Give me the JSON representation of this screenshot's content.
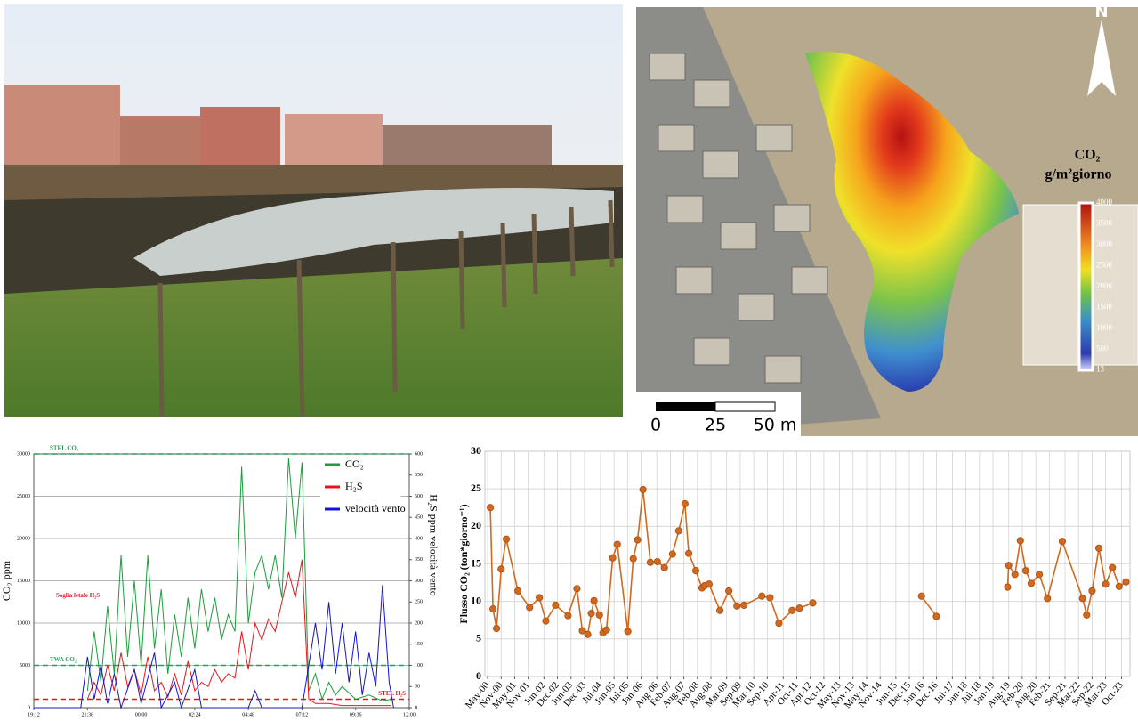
{
  "map": {
    "north": "N",
    "colorbar": {
      "title": "CO₂",
      "unit": "g/m²giorno",
      "lim": [
        0,
        4000
      ],
      "ticks": [
        13,
        500,
        1000,
        1500,
        2000,
        2500,
        3000,
        3500,
        4000
      ]
    },
    "scale_bar": {
      "lim": [
        0,
        50
      ],
      "ticks": [
        0,
        25,
        {
          "value": 50,
          "label": "50 m"
        }
      ]
    }
  },
  "chart_data": [
    {
      "type": "line",
      "ylabel": "CO₂ ppm",
      "y2label": "H₂S ppm  velocità vento",
      "xlim": [
        19.2,
        36
      ],
      "xticks": [
        {
          "value": 19.2,
          "label": "19:12"
        },
        {
          "value": 21.6,
          "label": "21:36"
        },
        {
          "value": 24,
          "label": "00:00"
        },
        {
          "value": 26.4,
          "label": "02:24"
        },
        {
          "value": 28.8,
          "label": "04:48"
        },
        {
          "value": 31.2,
          "label": "07:12"
        },
        {
          "value": 33.6,
          "label": "09:36"
        },
        {
          "value": 36,
          "label": "12:00"
        }
      ],
      "ylim": [
        0,
        30000
      ],
      "yticks": [
        0,
        5000,
        10000,
        15000,
        20000,
        25000,
        30000
      ],
      "y2lim": [
        0,
        600
      ],
      "y2ticks": [
        0,
        50,
        100,
        150,
        200,
        250,
        300,
        350,
        400,
        450,
        500,
        550,
        600
      ],
      "grid": true,
      "legend": "upper right",
      "series": [
        {
          "name": "CO₂",
          "color": "#1a9e3a",
          "x": [
            21.6,
            21.9,
            22.2,
            22.5,
            22.8,
            23.1,
            23.4,
            23.7,
            24.0,
            24.3,
            24.6,
            24.9,
            25.2,
            25.5,
            25.8,
            26.1,
            26.4,
            26.7,
            27.0,
            27.3,
            27.6,
            27.9,
            28.2,
            28.5,
            28.8,
            29.1,
            29.4,
            29.7,
            30.0,
            30.3,
            30.6,
            30.9,
            31.2,
            31.5,
            31.8,
            32.1,
            32.4,
            32.7,
            33.0,
            33.6,
            34.2,
            34.8,
            35.2
          ],
          "values": [
            2000,
            9000,
            3000,
            12000,
            4000,
            18000,
            6000,
            15000,
            5000,
            18000,
            7000,
            14000,
            4000,
            11000,
            6000,
            13000,
            7000,
            14000,
            9000,
            13000,
            8000,
            11000,
            9000,
            28500,
            10000,
            16000,
            18000,
            14000,
            18000,
            13000,
            29500,
            20000,
            29000,
            2000,
            4000,
            1000,
            3000,
            1500,
            2500,
            1000,
            1500,
            800,
            1000
          ]
        },
        {
          "name": "H₂S",
          "color": "#e8141b",
          "axis": "y2",
          "x": [
            21.6,
            21.9,
            22.2,
            22.5,
            22.8,
            23.1,
            23.4,
            23.7,
            24.0,
            24.3,
            24.6,
            24.9,
            25.2,
            25.5,
            25.8,
            26.1,
            26.4,
            26.7,
            27.0,
            27.3,
            27.6,
            27.9,
            28.2,
            28.5,
            28.8,
            29.1,
            29.4,
            29.7,
            30.0,
            30.3,
            30.6,
            30.9,
            31.2,
            31.5,
            31.8,
            32.4,
            33.0,
            34.2,
            35.2
          ],
          "values": [
            20,
            60,
            30,
            100,
            40,
            130,
            50,
            90,
            30,
            120,
            40,
            60,
            25,
            80,
            30,
            110,
            40,
            60,
            50,
            90,
            60,
            80,
            70,
            180,
            90,
            200,
            160,
            210,
            180,
            250,
            320,
            260,
            350,
            20,
            10,
            10,
            5,
            5,
            5
          ]
        },
        {
          "name": "velocità vento",
          "color": "#1414d0",
          "axis": "y2",
          "x": [
            19.2,
            21.3,
            21.6,
            21.9,
            22.2,
            22.5,
            22.8,
            23.1,
            23.7,
            24.0,
            24.6,
            24.9,
            25.5,
            25.8,
            26.4,
            26.7,
            28.8,
            29.1,
            29.4,
            31.2,
            31.5,
            31.8,
            32.1,
            32.4,
            32.7,
            33.0,
            33.3,
            33.6,
            33.9,
            34.2,
            34.5,
            34.8,
            35.1,
            35.3
          ],
          "values": [
            0,
            0,
            120,
            20,
            100,
            10,
            80,
            0,
            90,
            10,
            130,
            0,
            60,
            0,
            90,
            0,
            0,
            40,
            0,
            0,
            100,
            200,
            90,
            250,
            80,
            200,
            60,
            180,
            30,
            130,
            50,
            290,
            60,
            0
          ]
        }
      ],
      "reference_lines": [
        {
          "label": "STEL CO₂",
          "value": 30000,
          "color": "#2e9b57"
        },
        {
          "label": "TWA CO₂",
          "value": 5000,
          "color": "#2e9b57"
        },
        {
          "label": "STEL H₂S",
          "value": 20,
          "axis": "y2",
          "color": "#e8141b"
        }
      ],
      "annotations": [
        {
          "text": "Soglia letale H₂S",
          "color": "#e8141b"
        }
      ]
    },
    {
      "type": "line",
      "ylabel": "Flusso CO₂ (ton*giorno⁻¹)",
      "xlim": [
        2000.27,
        2024.1
      ],
      "xticks": [
        {
          "value": 2000.37,
          "label": "May-00"
        },
        {
          "value": 2000.87,
          "label": "Nov-00"
        },
        {
          "value": 2001.37,
          "label": "May-01"
        },
        {
          "value": 2001.87,
          "label": "Nov-01"
        },
        {
          "value": 2002.45,
          "label": "Jun-02"
        },
        {
          "value": 2002.95,
          "label": "Dec-02"
        },
        {
          "value": 2003.45,
          "label": "Jun-03"
        },
        {
          "value": 2003.95,
          "label": "Dec-03"
        },
        {
          "value": 2004.54,
          "label": "Jul-04"
        },
        {
          "value": 2005.04,
          "label": "Jan-05"
        },
        {
          "value": 2005.54,
          "label": "Jul-05"
        },
        {
          "value": 2006.04,
          "label": "Jan-06"
        },
        {
          "value": 2006.62,
          "label": "Aug-06"
        },
        {
          "value": 2007.12,
          "label": "Feb-07"
        },
        {
          "value": 2007.62,
          "label": "Aug-07"
        },
        {
          "value": 2008.12,
          "label": "Feb-08"
        },
        {
          "value": 2008.62,
          "label": "Aug-08"
        },
        {
          "value": 2009.2,
          "label": "Mar-09"
        },
        {
          "value": 2009.7,
          "label": "Sep-09"
        },
        {
          "value": 2010.2,
          "label": "Mar-10"
        },
        {
          "value": 2010.7,
          "label": "Sep-10"
        },
        {
          "value": 2011.29,
          "label": "Apr-11"
        },
        {
          "value": 2011.79,
          "label": "Oct-11"
        },
        {
          "value": 2012.29,
          "label": "Apr-12"
        },
        {
          "value": 2012.79,
          "label": "Oct-12"
        },
        {
          "value": 2013.37,
          "label": "May-13"
        },
        {
          "value": 2013.87,
          "label": "Nov-13"
        },
        {
          "value": 2014.37,
          "label": "May-14"
        },
        {
          "value": 2014.87,
          "label": "Nov-14"
        },
        {
          "value": 2015.45,
          "label": "Jun-15"
        },
        {
          "value": 2015.95,
          "label": "Dec-15"
        },
        {
          "value": 2016.45,
          "label": "Jun-16"
        },
        {
          "value": 2016.95,
          "label": "Dec-16"
        },
        {
          "value": 2017.54,
          "label": "Jul-17"
        },
        {
          "value": 2018.04,
          "label": "Jan-18"
        },
        {
          "value": 2018.54,
          "label": "Jul-18"
        },
        {
          "value": 2019.04,
          "label": "Jan-19"
        },
        {
          "value": 2019.62,
          "label": "Aug-19"
        },
        {
          "value": 2020.12,
          "label": "Feb-20"
        },
        {
          "value": 2020.62,
          "label": "Aug-20"
        },
        {
          "value": 2021.12,
          "label": "Feb-21"
        },
        {
          "value": 2021.7,
          "label": "Sep-21"
        },
        {
          "value": 2022.2,
          "label": "Mar-22"
        },
        {
          "value": 2022.7,
          "label": "Sep-22"
        },
        {
          "value": 2023.2,
          "label": "Mar-23"
        },
        {
          "value": 2023.79,
          "label": "Oct-23"
        }
      ],
      "ylim": [
        0,
        30
      ],
      "yticks": [
        0,
        5,
        10,
        15,
        20,
        25,
        30
      ],
      "grid": true,
      "series": [
        {
          "color": "#d2691e",
          "x": [
            2000.47,
            2000.57,
            2000.7,
            2000.87,
            2001.06,
            2001.49,
            2001.92,
            2002.28,
            2002.52,
            2002.88,
            2003.34,
            2003.67,
            2003.87,
            2004.07,
            2004.2,
            2004.3,
            2004.5,
            2004.63,
            2004.76,
            2004.99,
            2005.16,
            2005.55,
            2005.75,
            2005.91,
            2006.11,
            2006.38,
            2006.64,
            2006.9,
            2007.2,
            2007.43,
            2007.66,
            2007.8,
            2008.06,
            2008.29,
            2008.39,
            2008.55,
            2008.95,
            2009.28,
            2009.58,
            2009.84,
            2010.5,
            2010.8,
            2011.13,
            2011.62,
            2011.89,
            2012.38,
            2014.0,
            2016.4,
            2016.95,
            2018.5,
            2019.58,
            2019.62,
            2019.85,
            2020.05,
            2020.25,
            2020.45,
            2020.75,
            2021.05,
            2021.6,
            2022.35,
            2022.5,
            2022.7,
            2022.95,
            2023.2,
            2023.45,
            2023.7,
            2023.95
          ],
          "values": [
            22.5,
            9,
            6.4,
            14.3,
            18.3,
            11.4,
            9.2,
            10.5,
            7.4,
            9.5,
            8.1,
            11.7,
            6.1,
            5.6,
            8.4,
            10.1,
            8.2,
            5.8,
            6.2,
            15.8,
            17.6,
            6.0,
            15.7,
            18.2,
            24.9,
            15.2,
            15.3,
            14.5,
            16.3,
            19.4,
            23.0,
            16.4,
            14.1,
            11.8,
            12.1,
            12.3,
            8.8,
            11.4,
            9.4,
            9.5,
            10.7,
            10.5,
            7.1,
            8.8,
            9.1,
            9.8,
            null,
            10.7,
            8.0,
            null,
            11.9,
            14.8,
            13.6,
            18.1,
            14.1,
            12.4,
            13.6,
            10.4,
            18.0,
            10.4,
            8.2,
            11.4,
            17.1,
            12.3,
            14.5,
            12.0,
            12.6
          ]
        }
      ]
    }
  ]
}
